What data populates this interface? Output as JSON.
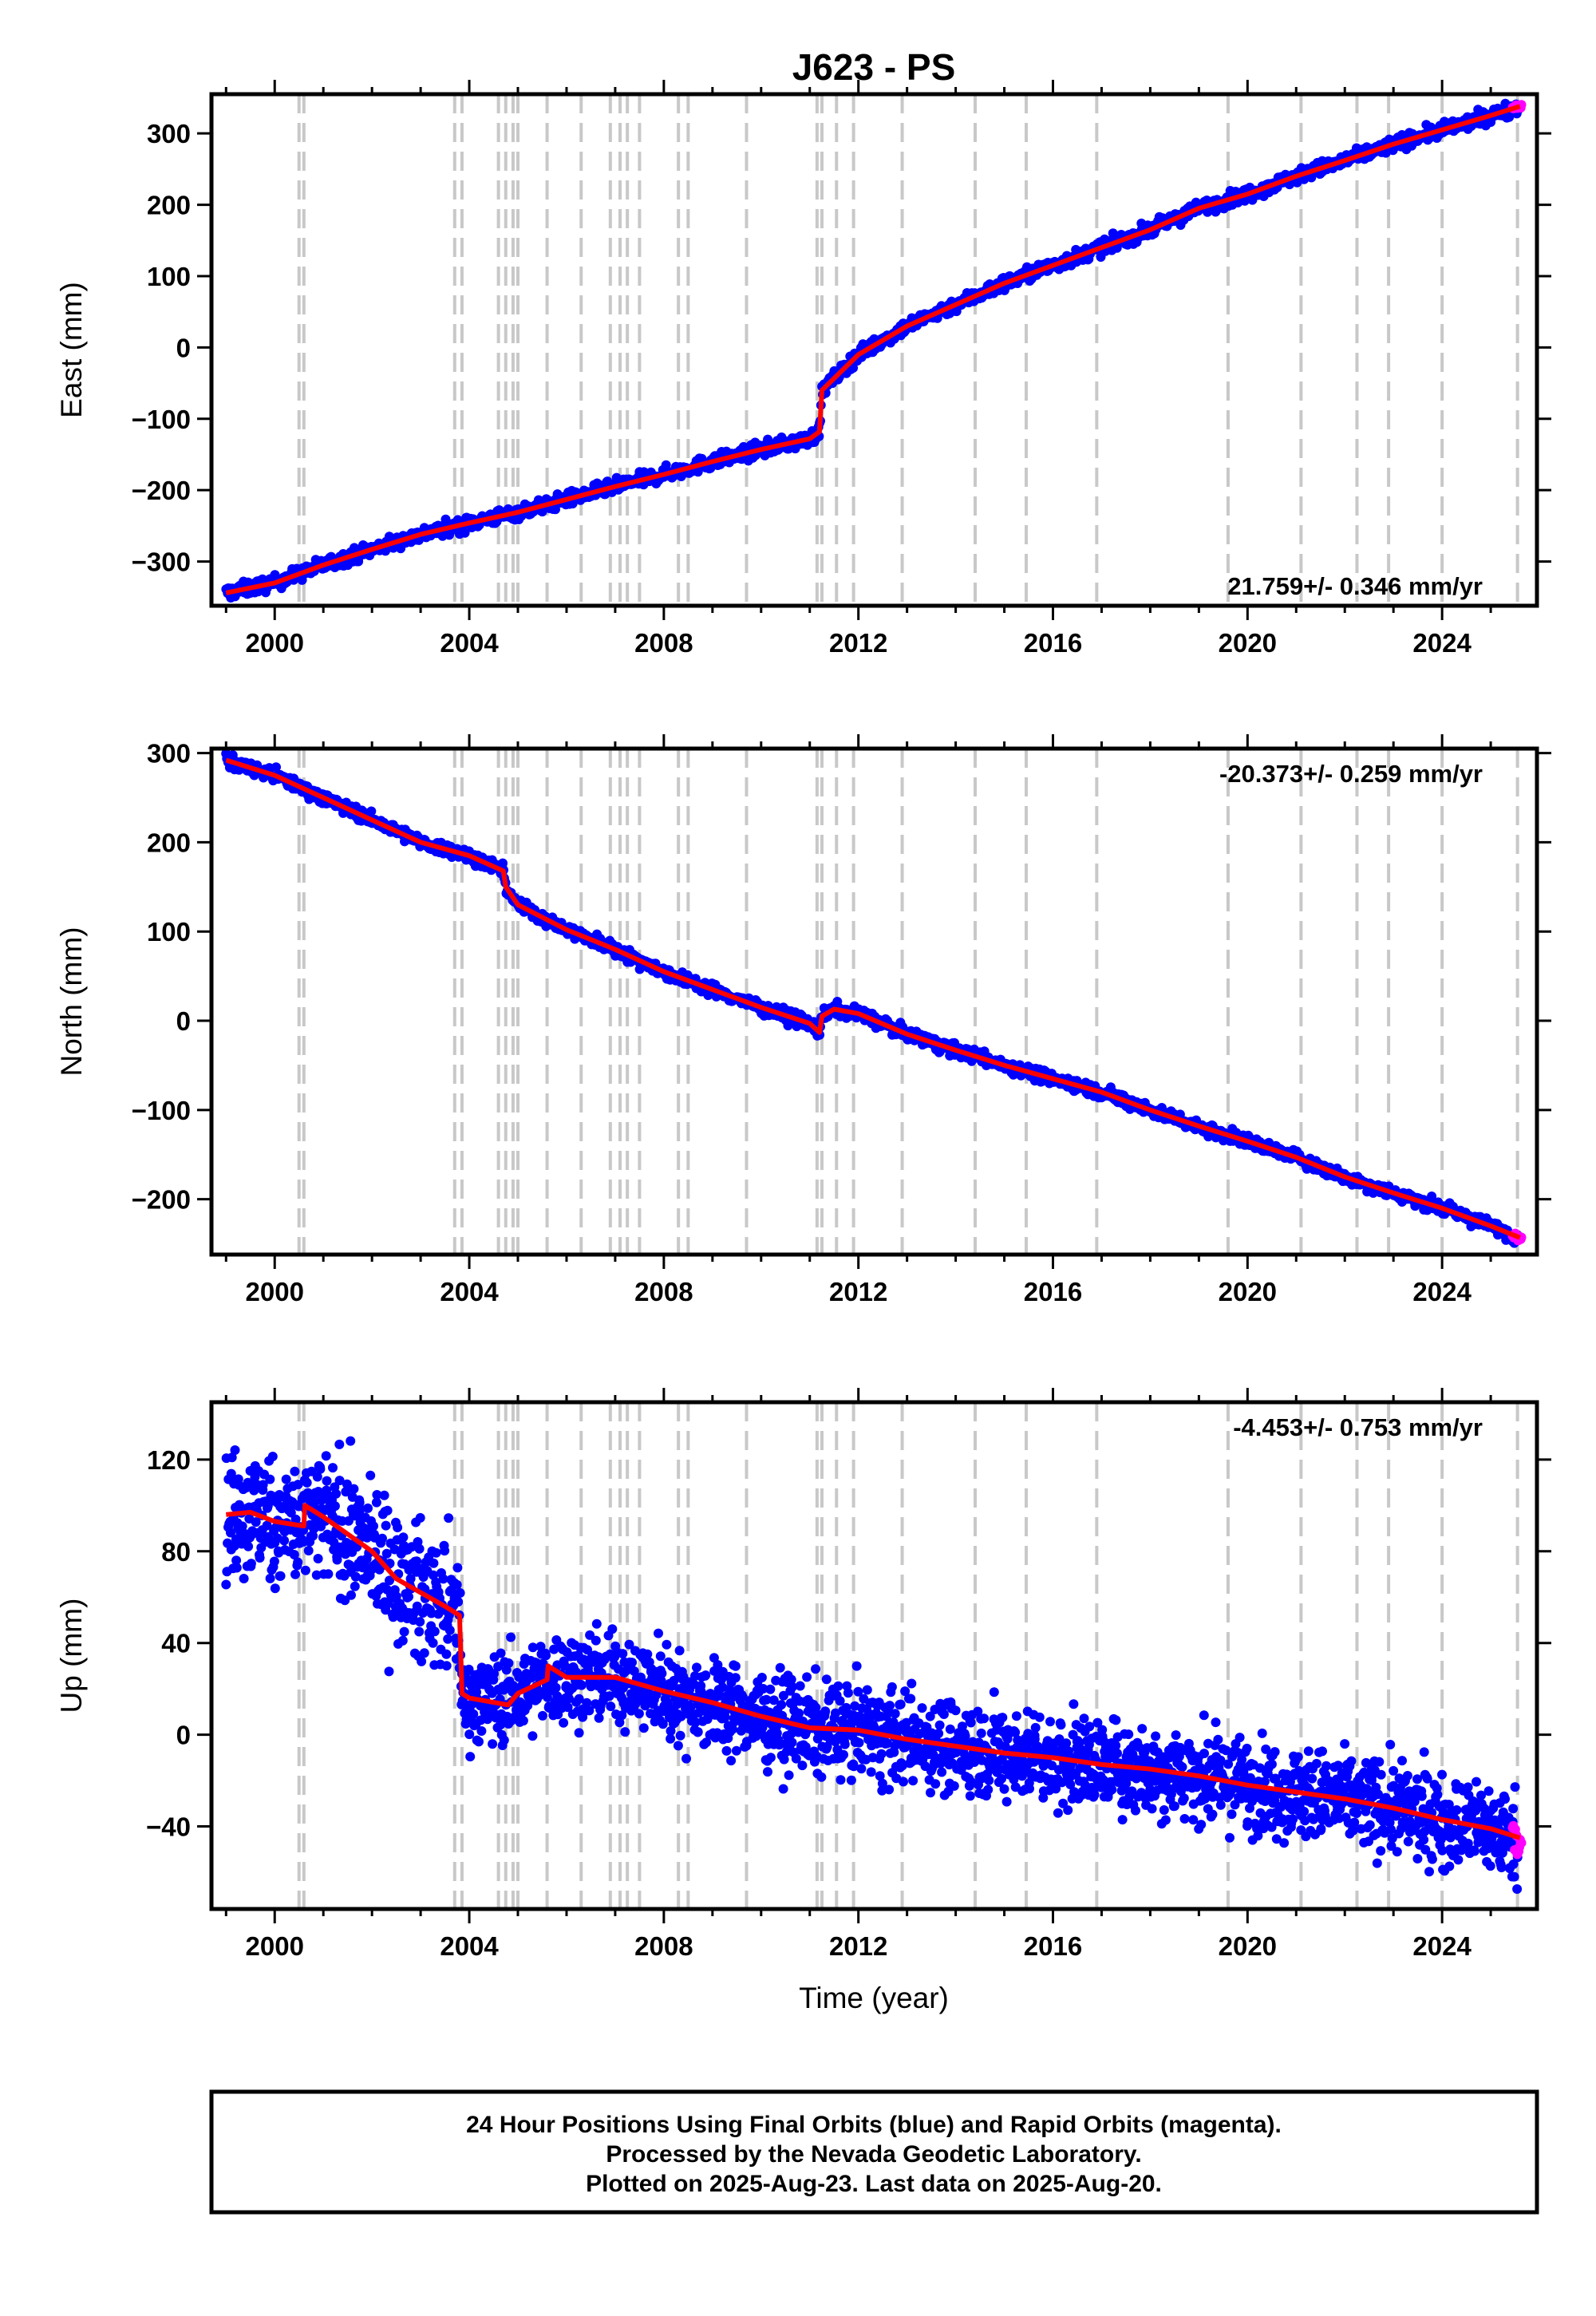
{
  "title": "J623 - PS",
  "colors": {
    "final": "#0000ff",
    "rapid": "#ff00ff",
    "model": "#ff0000",
    "steps": "#c8c8c8"
  },
  "chart_data": [
    {
      "type": "scatter",
      "ylabel": "East (mm)",
      "xlabel": "",
      "xlim": [
        1998.7,
        2025.95
      ],
      "ylim": [
        -362,
        355
      ],
      "xticks": [
        2000,
        2004,
        2008,
        2012,
        2016,
        2020,
        2024
      ],
      "yticks": [
        -300,
        -200,
        -100,
        0,
        100,
        200,
        300
      ],
      "tick_labels": [
        "−300",
        "−200",
        "−100",
        "0",
        "100",
        "200",
        "300"
      ],
      "rate_label": "21.759+/- 0.346 mm/yr",
      "rate_position": "bottom-right",
      "series": [
        {
          "name": "Final Orbits",
          "color": "#0000ff",
          "x": [
            1999.0,
            2000.0,
            2001.0,
            2002.0,
            2003.0,
            2004.0,
            2005.0,
            2006.0,
            2007.0,
            2008.0,
            2009.0,
            2010.0,
            2011.0,
            2011.2,
            2011.25,
            2012.0,
            2013.0,
            2014.0,
            2015.0,
            2016.0,
            2017.0,
            2018.0,
            2019.0,
            2020.0,
            2021.0,
            2022.0,
            2023.0,
            2024.0,
            2025.0,
            2025.55
          ],
          "y": [
            -344,
            -330,
            -305,
            -283,
            -262,
            -246,
            -231,
            -213,
            -195,
            -178,
            -160,
            -143,
            -128,
            -118,
            -60,
            -10,
            30,
            60,
            90,
            115,
            140,
            165,
            195,
            215,
            240,
            262,
            285,
            305,
            325,
            338
          ]
        },
        {
          "name": "Rapid Orbits",
          "color": "#ff00ff",
          "x": [
            2025.45,
            2025.55,
            2025.63
          ],
          "y": [
            336,
            338,
            339
          ]
        },
        {
          "name": "Model",
          "color": "#ff0000",
          "x": [
            1999.0,
            2000.0,
            2001.0,
            2002.0,
            2003.0,
            2004.0,
            2005.0,
            2006.0,
            2007.0,
            2008.0,
            2009.0,
            2010.0,
            2011.0,
            2011.2,
            2011.25,
            2012.0,
            2013.0,
            2014.0,
            2015.0,
            2016.0,
            2017.0,
            2018.0,
            2019.0,
            2020.0,
            2021.0,
            2022.0,
            2023.0,
            2024.0,
            2025.0,
            2025.6
          ],
          "y": [
            -344,
            -330,
            -305,
            -283,
            -262,
            -246,
            -231,
            -213,
            -195,
            -178,
            -160,
            -143,
            -128,
            -118,
            -60,
            -10,
            30,
            60,
            90,
            115,
            140,
            165,
            195,
            215,
            240,
            262,
            285,
            305,
            325,
            338
          ]
        }
      ]
    },
    {
      "type": "scatter",
      "ylabel": "North (mm)",
      "xlabel": "",
      "xlim": [
        1998.7,
        2025.95
      ],
      "ylim": [
        -262,
        305
      ],
      "xticks": [
        2000,
        2004,
        2008,
        2012,
        2016,
        2020,
        2024
      ],
      "yticks": [
        -200,
        -100,
        0,
        100,
        200,
        300
      ],
      "tick_labels": [
        "−200",
        "−100",
        "0",
        "100",
        "200",
        "300"
      ],
      "rate_label": "-20.373+/- 0.259 mm/yr",
      "rate_position": "top-right",
      "series": [
        {
          "name": "Final Orbits",
          "color": "#0000ff",
          "x": [
            1999.0,
            2000.0,
            2001.0,
            2002.0,
            2003.0,
            2004.0,
            2004.7,
            2004.75,
            2005.0,
            2006.0,
            2007.0,
            2008.0,
            2009.0,
            2010.0,
            2011.0,
            2011.2,
            2011.25,
            2011.5,
            2012.0,
            2013.0,
            2014.0,
            2015.0,
            2016.0,
            2017.0,
            2018.0,
            2019.0,
            2020.0,
            2021.0,
            2022.0,
            2023.0,
            2024.0,
            2025.0,
            2025.55
          ],
          "y": [
            292,
            275,
            250,
            225,
            200,
            185,
            168,
            150,
            130,
            102,
            80,
            55,
            35,
            15,
            -3,
            -13,
            5,
            13,
            8,
            -15,
            -33,
            -50,
            -65,
            -80,
            -100,
            -118,
            -135,
            -153,
            -175,
            -193,
            -210,
            -230,
            -243
          ]
        },
        {
          "name": "Rapid Orbits",
          "color": "#ff00ff",
          "x": [
            2025.45,
            2025.55,
            2025.63
          ],
          "y": [
            -240,
            -243,
            -245
          ]
        },
        {
          "name": "Model",
          "color": "#ff0000",
          "x": [
            1999.0,
            2000.0,
            2001.0,
            2002.0,
            2003.0,
            2004.0,
            2004.7,
            2004.75,
            2005.0,
            2006.0,
            2007.0,
            2008.0,
            2009.0,
            2010.0,
            2011.0,
            2011.2,
            2011.25,
            2011.5,
            2012.0,
            2013.0,
            2014.0,
            2015.0,
            2016.0,
            2017.0,
            2018.0,
            2019.0,
            2020.0,
            2021.0,
            2022.0,
            2023.0,
            2024.0,
            2025.0,
            2025.6
          ],
          "y": [
            292,
            275,
            250,
            225,
            200,
            185,
            168,
            150,
            130,
            102,
            80,
            55,
            35,
            15,
            -3,
            -13,
            5,
            13,
            8,
            -15,
            -33,
            -50,
            -65,
            -80,
            -100,
            -118,
            -135,
            -153,
            -175,
            -193,
            -210,
            -230,
            -243
          ]
        }
      ]
    },
    {
      "type": "scatter",
      "ylabel": "Up (mm)",
      "xlabel": "Time (year)",
      "xlim": [
        1998.7,
        2025.95
      ],
      "ylim": [
        -76,
        145
      ],
      "xticks": [
        2000,
        2004,
        2008,
        2012,
        2016,
        2020,
        2024
      ],
      "yticks": [
        -40,
        0,
        40,
        80,
        120
      ],
      "tick_labels": [
        "−40",
        "0",
        "40",
        "80",
        "120"
      ],
      "rate_label": "-4.453+/- 0.753 mm/yr",
      "rate_position": "top-right",
      "series": [
        {
          "name": "Final Orbits",
          "color": "#0000ff",
          "x": [
            1999.0,
            2000.0,
            2000.6,
            2001.0,
            2002.0,
            2002.5,
            2003.0,
            2003.5,
            2003.8,
            2003.85,
            2004.0,
            2005.0,
            2005.6,
            2006.0,
            2007.0,
            2008.0,
            2009.0,
            2010.0,
            2011.0,
            2012.0,
            2013.0,
            2014.0,
            2015.0,
            2016.0,
            2017.0,
            2018.0,
            2019.0,
            2020.0,
            2021.0,
            2022.0,
            2023.0,
            2024.0,
            2025.0,
            2025.55
          ],
          "y": [
            97,
            94,
            91,
            95,
            80,
            68,
            62,
            56,
            52,
            18,
            16,
            16,
            24,
            25,
            25,
            19,
            14,
            8,
            3,
            2,
            -2,
            -5,
            -8,
            -10,
            -13,
            -15,
            -18,
            -22,
            -25,
            -28,
            -32,
            -37,
            -41,
            -45
          ]
        },
        {
          "name": "Rapid Orbits",
          "color": "#ff00ff",
          "x": [
            2025.45,
            2025.55,
            2025.63
          ],
          "y": [
            -40,
            -45,
            -50
          ]
        },
        {
          "name": "Model",
          "color": "#ff0000",
          "x": [
            1999.0,
            1999.5,
            2000.0,
            2000.6,
            2000.62,
            2001.0,
            2002.0,
            2002.5,
            2003.0,
            2003.5,
            2003.8,
            2003.85,
            2004.0,
            2004.8,
            2005.0,
            2005.6,
            2005.62,
            2006.0,
            2007.0,
            2008.0,
            2009.0,
            2010.0,
            2011.0,
            2012.0,
            2013.0,
            2014.0,
            2015.0,
            2016.0,
            2017.0,
            2018.0,
            2019.0,
            2020.0,
            2021.0,
            2022.0,
            2023.0,
            2024.0,
            2025.0,
            2025.6
          ],
          "y": [
            96,
            97,
            93,
            91,
            100,
            95,
            80,
            68,
            62,
            56,
            52,
            18,
            16,
            13,
            18,
            24,
            30,
            25,
            25,
            19,
            14,
            8,
            3,
            2,
            -2,
            -5,
            -8,
            -10,
            -13,
            -15,
            -18,
            -22,
            -25,
            -28,
            -32,
            -37,
            -41,
            -45
          ]
        }
      ]
    }
  ],
  "step_epochs": [
    2000.5,
    2000.6,
    2003.7,
    2003.85,
    2004.6,
    2004.75,
    2004.9,
    2005.0,
    2005.6,
    2006.3,
    2006.9,
    2007.1,
    2007.25,
    2007.5,
    2008.3,
    2008.5,
    2009.7,
    2011.15,
    2011.25,
    2011.55,
    2011.9,
    2012.9,
    2014.4,
    2015.45,
    2016.9,
    2019.6,
    2021.1,
    2022.25,
    2022.9,
    2024.0,
    2025.55
  ],
  "footer": {
    "line1": "24 Hour Positions Using Final Orbits (blue) and Rapid Orbits (magenta).",
    "line2": "Processed by the Nevada Geodetic Laboratory.",
    "line3": "Plotted on 2025-Aug-23. Last data on 2025-Aug-20."
  }
}
